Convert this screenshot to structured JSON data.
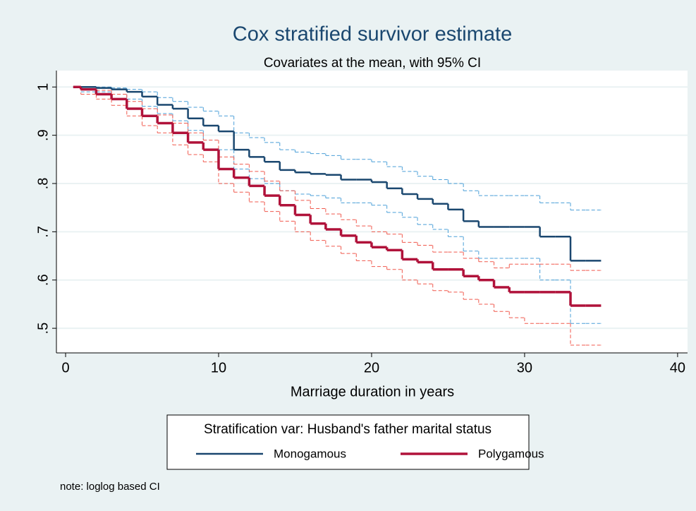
{
  "chart_data": {
    "type": "step",
    "title": "Cox stratified survivor estimate",
    "subtitle": "Covariates at the mean, with 95% CI",
    "x_label": "Marriage duration in years",
    "legend_title": "Stratification var: Husband's father marital status",
    "note": "note: loglog based CI",
    "legend_position": "bottom",
    "grid": true,
    "xlim": [
      -0.6,
      40.65
    ],
    "ylim": [
      0.449,
      1.034
    ],
    "xticks": [
      0,
      10,
      20,
      30,
      40
    ],
    "yticks": [
      {
        "value": 0.5,
        "label": ".5"
      },
      {
        "value": 0.6,
        "label": ".6"
      },
      {
        "value": 0.7,
        "label": ".7"
      },
      {
        "value": 0.8,
        "label": ".8"
      },
      {
        "value": 0.9,
        "label": ".9"
      },
      1
    ],
    "x": [
      0.5,
      1,
      2,
      3,
      4,
      5,
      6,
      7,
      8,
      9,
      10,
      11,
      12,
      13,
      14,
      15,
      16,
      17,
      18,
      19,
      20,
      21,
      22,
      23,
      24,
      25,
      26,
      27,
      28,
      29,
      30,
      31,
      32,
      33,
      34,
      35
    ],
    "series": [
      {
        "name": "Monogamous",
        "color": "#1a476f",
        "ci_color": "#4a9fd8",
        "values": [
          1.0,
          1.0,
          0.998,
          0.995,
          0.99,
          0.98,
          0.963,
          0.955,
          0.935,
          0.92,
          0.908,
          0.87,
          0.855,
          0.845,
          0.828,
          0.823,
          0.82,
          0.818,
          0.808,
          0.808,
          0.803,
          0.79,
          0.778,
          0.768,
          0.758,
          0.746,
          0.722,
          0.71,
          0.71,
          0.71,
          0.71,
          0.69,
          0.69,
          0.64,
          0.64,
          0.64
        ],
        "ci_upper": [
          1.0,
          1.0,
          1.0,
          0.998,
          0.995,
          0.99,
          0.978,
          0.97,
          0.958,
          0.95,
          0.94,
          0.905,
          0.895,
          0.885,
          0.87,
          0.865,
          0.862,
          0.858,
          0.85,
          0.85,
          0.845,
          0.835,
          0.825,
          0.815,
          0.808,
          0.8,
          0.785,
          0.775,
          0.775,
          0.775,
          0.775,
          0.76,
          0.76,
          0.745,
          0.745,
          0.745
        ],
        "ci_lower": [
          1.0,
          0.99,
          0.99,
          0.985,
          0.975,
          0.96,
          0.945,
          0.93,
          0.91,
          0.89,
          0.87,
          0.83,
          0.81,
          0.8,
          0.785,
          0.778,
          0.775,
          0.77,
          0.76,
          0.76,
          0.755,
          0.74,
          0.73,
          0.715,
          0.705,
          0.69,
          0.66,
          0.645,
          0.645,
          0.645,
          0.645,
          0.6,
          0.6,
          0.51,
          0.51,
          0.51
        ]
      },
      {
        "name": "Polygamous",
        "color": "#b0123a",
        "ci_color": "#f0584c",
        "values": [
          1.0,
          0.995,
          0.985,
          0.975,
          0.955,
          0.94,
          0.925,
          0.905,
          0.885,
          0.87,
          0.83,
          0.812,
          0.795,
          0.775,
          0.755,
          0.735,
          0.717,
          0.705,
          0.692,
          0.678,
          0.668,
          0.662,
          0.643,
          0.637,
          0.622,
          0.622,
          0.608,
          0.6,
          0.585,
          0.575,
          0.575,
          0.575,
          0.575,
          0.547,
          0.547,
          0.547
        ],
        "ci_upper": [
          1.0,
          1.0,
          0.993,
          0.985,
          0.97,
          0.955,
          0.942,
          0.925,
          0.905,
          0.89,
          0.855,
          0.84,
          0.825,
          0.805,
          0.785,
          0.765,
          0.748,
          0.737,
          0.725,
          0.712,
          0.7,
          0.695,
          0.678,
          0.672,
          0.658,
          0.658,
          0.645,
          0.638,
          0.625,
          0.633,
          0.633,
          0.633,
          0.633,
          0.62,
          0.62,
          0.62
        ],
        "ci_lower": [
          1.0,
          0.985,
          0.975,
          0.962,
          0.94,
          0.92,
          0.905,
          0.88,
          0.86,
          0.845,
          0.8,
          0.782,
          0.762,
          0.742,
          0.722,
          0.7,
          0.682,
          0.67,
          0.655,
          0.64,
          0.628,
          0.622,
          0.6,
          0.592,
          0.578,
          0.575,
          0.56,
          0.55,
          0.535,
          0.522,
          0.51,
          0.51,
          0.51,
          0.465,
          0.465,
          0.465
        ]
      }
    ]
  }
}
